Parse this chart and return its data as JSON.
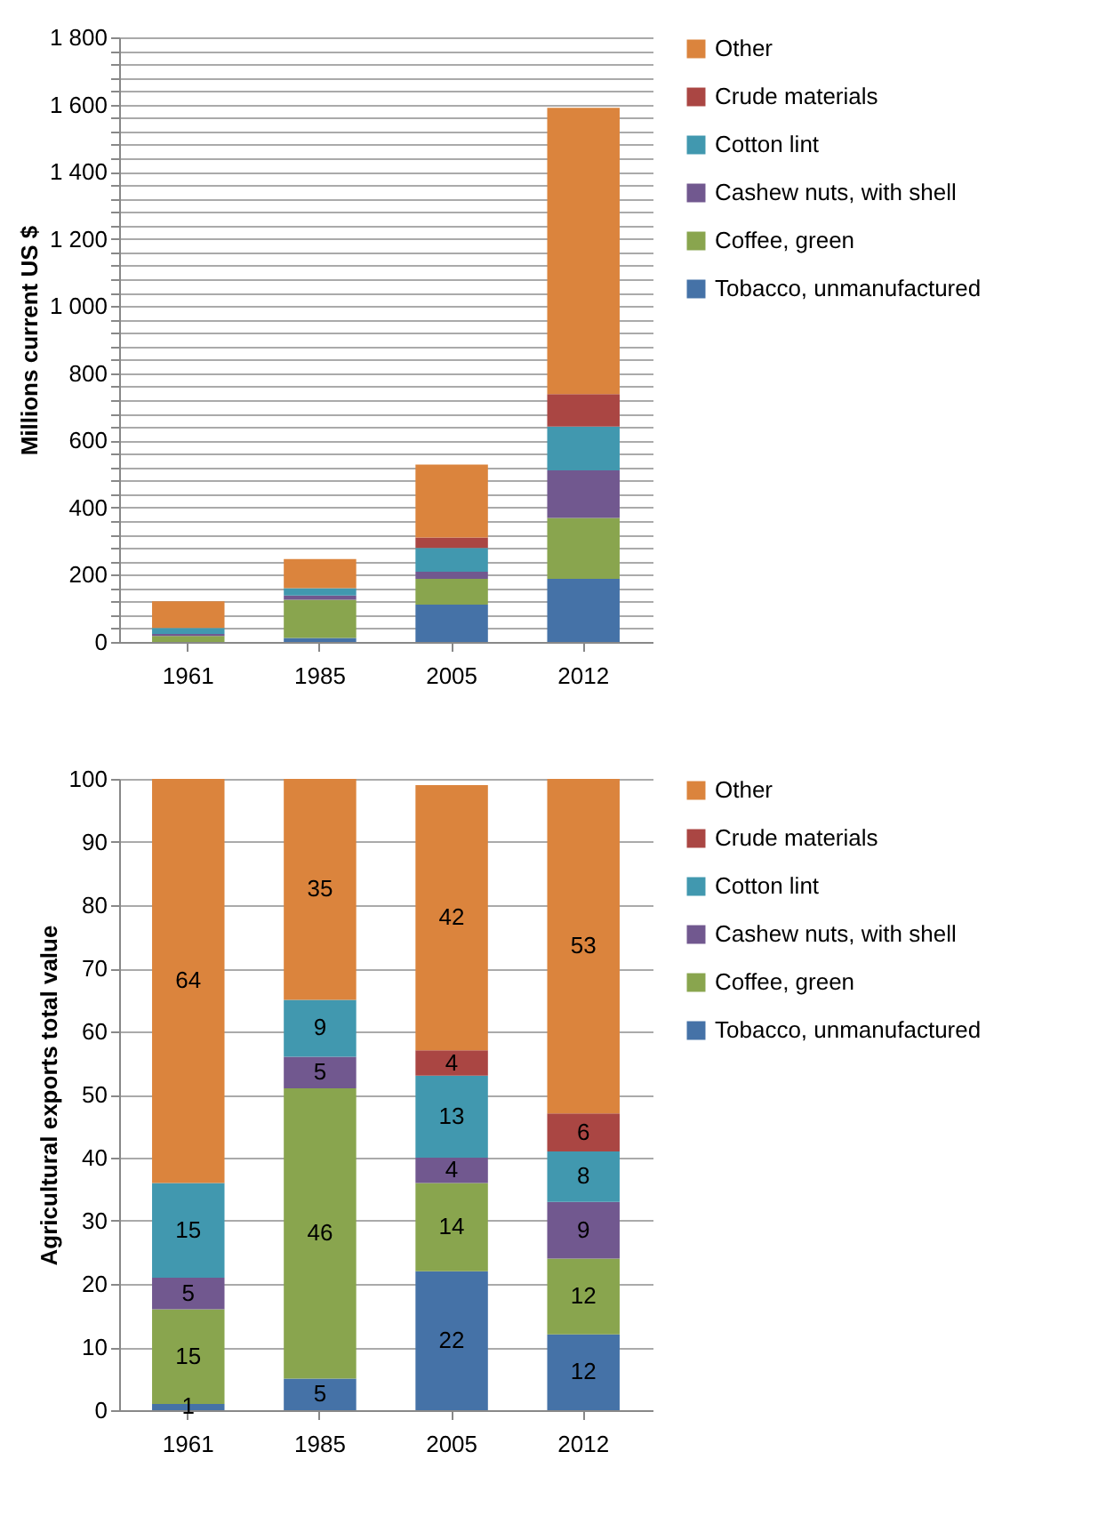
{
  "chart_data": [
    {
      "type": "bar",
      "stacked": true,
      "ylabel": "Millions current US $",
      "categories": [
        "1961",
        "1985",
        "2005",
        "2012"
      ],
      "series": [
        {
          "name": "Tobacco, unmanufactured",
          "color": "#4572a7",
          "values": [
            null,
            12,
            111,
            188
          ]
        },
        {
          "name": "Coffee, green",
          "color": "#89a54e",
          "values": [
            18,
            114,
            77,
            181
          ]
        },
        {
          "name": "Cashew nuts, with shell",
          "color": "#71588f",
          "values": [
            6,
            12,
            21,
            142
          ]
        },
        {
          "name": "Cotton lint",
          "color": "#4198af",
          "values": [
            18,
            22,
            71,
            130
          ]
        },
        {
          "name": "Crude materials",
          "color": "#aa4643",
          "values": [
            0,
            0,
            31,
            97
          ]
        },
        {
          "name": "Other",
          "color": "#db843d",
          "values": [
            79,
            87,
            217,
            852
          ]
        }
      ],
      "ylim": [
        0,
        1800
      ],
      "yticks": [
        0,
        {
          "value": 40,
          "label": null
        },
        {
          "value": 80,
          "label": null
        },
        {
          "value": 120,
          "label": null
        },
        {
          "value": 160,
          "label": null
        },
        200,
        {
          "value": 240,
          "label": null
        },
        {
          "value": 280,
          "label": null
        },
        {
          "value": 320,
          "label": null
        },
        {
          "value": 360,
          "label": null
        },
        400,
        {
          "value": 440,
          "label": null
        },
        {
          "value": 480,
          "label": null
        },
        {
          "value": 520,
          "label": null
        },
        {
          "value": 560,
          "label": null
        },
        600,
        {
          "value": 640,
          "label": null
        },
        {
          "value": 680,
          "label": null
        },
        {
          "value": 720,
          "label": null
        },
        {
          "value": 760,
          "label": null
        },
        800,
        {
          "value": 840,
          "label": null
        },
        {
          "value": 880,
          "label": null
        },
        {
          "value": 920,
          "label": null
        },
        {
          "value": 960,
          "label": null
        },
        {
          "value": 1000,
          "label": "1 000"
        },
        {
          "value": 1040,
          "label": null
        },
        {
          "value": 1080,
          "label": null
        },
        {
          "value": 1120,
          "label": null
        },
        {
          "value": 1160,
          "label": null
        },
        {
          "value": 1200,
          "label": "1 200"
        },
        {
          "value": 1240,
          "label": null
        },
        {
          "value": 1280,
          "label": null
        },
        {
          "value": 1320,
          "label": null
        },
        {
          "value": 1360,
          "label": null
        },
        {
          "value": 1400,
          "label": "1 400"
        },
        {
          "value": 1440,
          "label": null
        },
        {
          "value": 1480,
          "label": null
        },
        {
          "value": 1520,
          "label": null
        },
        {
          "value": 1560,
          "label": null
        },
        {
          "value": 1600,
          "label": "1 600"
        },
        {
          "value": 1640,
          "label": null
        },
        {
          "value": 1680,
          "label": null
        },
        {
          "value": 1720,
          "label": null
        },
        {
          "value": 1760,
          "label": null
        },
        {
          "value": 1800,
          "label": "1 800"
        }
      ],
      "grid": "y",
      "legend": "right"
    },
    {
      "type": "bar",
      "stacked": true,
      "ylabel": "Agricultural exports total value",
      "categories": [
        "1961",
        "1985",
        "2005",
        "2012"
      ],
      "series": [
        {
          "name": "Tobacco, unmanufactured",
          "color": "#4572a7",
          "values": [
            1,
            5,
            22,
            12
          ],
          "value_labels": [
            "1",
            "5",
            "22",
            "12"
          ]
        },
        {
          "name": "Coffee, green",
          "color": "#89a54e",
          "values": [
            15,
            46,
            14,
            12
          ],
          "value_labels": [
            "15",
            "46",
            "14",
            "12"
          ]
        },
        {
          "name": "Cashew nuts, with shell",
          "color": "#71588f",
          "values": [
            5,
            5,
            4,
            9
          ],
          "value_labels": [
            "5",
            "5",
            "4",
            "9"
          ]
        },
        {
          "name": "Cotton lint",
          "color": "#4198af",
          "values": [
            15,
            9,
            13,
            8
          ],
          "value_labels": [
            "15",
            "9",
            "13",
            "8"
          ]
        },
        {
          "name": "Crude materials",
          "color": "#aa4643",
          "values": [
            0,
            0,
            4,
            6
          ],
          "value_labels": [
            null,
            null,
            "4",
            "6"
          ]
        },
        {
          "name": "Other",
          "color": "#db843d",
          "values": [
            64,
            35,
            42,
            53
          ],
          "value_labels": [
            "64",
            "35",
            "42",
            "53"
          ]
        }
      ],
      "ylim": [
        0,
        100
      ],
      "yticks": [
        0,
        10,
        20,
        30,
        40,
        50,
        60,
        70,
        80,
        90,
        100
      ],
      "grid": "y",
      "legend": "right"
    }
  ]
}
